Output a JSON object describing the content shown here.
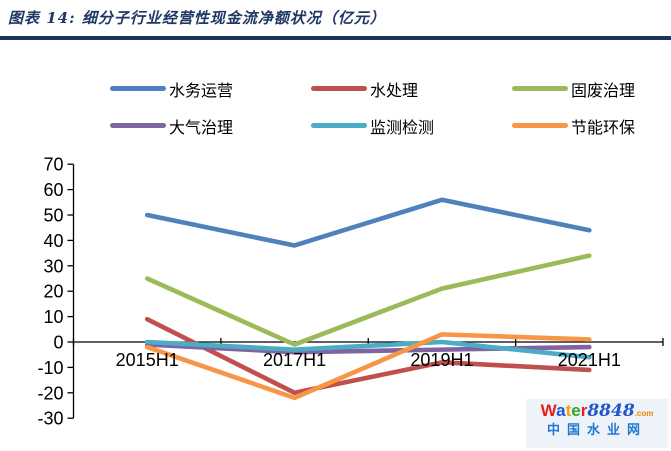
{
  "header": {
    "title": "图表 14:  细分子行业经营性现金流净额状况（亿元）",
    "rule_color": "#17365D"
  },
  "chart_data": {
    "type": "line",
    "title": "细分子行业经营性现金流净额状况（亿元）",
    "categories": [
      "2015H1",
      "2017H1",
      "2019H1",
      "2021H1"
    ],
    "series": [
      {
        "name": "水务运营",
        "color": "#4F81BD",
        "values": [
          50,
          38,
          56,
          44
        ]
      },
      {
        "name": "水处理",
        "color": "#C0504D",
        "values": [
          9,
          -20,
          -8,
          -11
        ]
      },
      {
        "name": "固废治理",
        "color": "#9BBB59",
        "values": [
          25,
          -1,
          21,
          34
        ]
      },
      {
        "name": "大气治理",
        "color": "#8064A2",
        "values": [
          -1,
          -4,
          -3,
          -2
        ]
      },
      {
        "name": "监测检测",
        "color": "#4BACC6",
        "values": [
          0,
          -3,
          0,
          -6
        ]
      },
      {
        "name": "节能环保",
        "color": "#F79646",
        "values": [
          -2,
          -22,
          3,
          1
        ]
      }
    ],
    "xlabel": "",
    "ylabel": "",
    "ylim": [
      -30,
      70
    ],
    "yticks": [
      70,
      60,
      50,
      40,
      30,
      20,
      10,
      0,
      -10,
      -20,
      -30
    ],
    "grid": false,
    "legend_position": "top",
    "legend_order": [
      "水务运营",
      "水处理",
      "固废治理",
      "大气治理",
      "监测检测",
      "节能环保"
    ]
  },
  "watermark": {
    "word_letters": [
      {
        "ch": "W",
        "color": "#E2231A"
      },
      {
        "ch": "a",
        "color": "#1A56DB"
      },
      {
        "ch": "t",
        "color": "#F5A300"
      },
      {
        "ch": "e",
        "color": "#35A12E"
      },
      {
        "ch": "r",
        "color": "#E2231A"
      }
    ],
    "number": "8848",
    "number_color": "#2255CC",
    "tld": ".com",
    "tld_color": "#F08300",
    "subtitle": "中国水业网",
    "subtitle_color": "#1E78D0"
  }
}
